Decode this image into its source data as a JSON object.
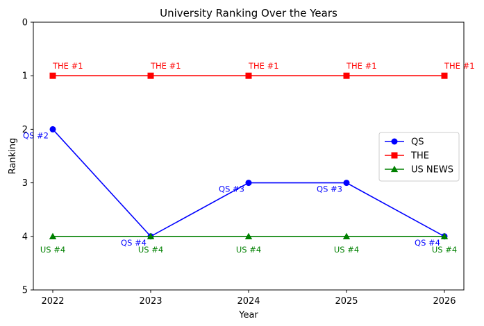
{
  "chart_data": {
    "type": "line",
    "title": "University Ranking Over the Years",
    "xlabel": "Year",
    "ylabel": "Ranking",
    "x": [
      2022,
      2023,
      2024,
      2025,
      2026
    ],
    "x_ticks": [
      "2022",
      "2023",
      "2024",
      "2025",
      "2026"
    ],
    "ylim": [
      0,
      5
    ],
    "y_inverted": true,
    "y_ticks": [
      0,
      1,
      2,
      3,
      4,
      5
    ],
    "grid": false,
    "legend_position": "right",
    "series": [
      {
        "name": "QS",
        "values": [
          2,
          4,
          3,
          3,
          4
        ],
        "color": "#0000ff",
        "marker": "circle",
        "labels": [
          "QS #2",
          "QS #4",
          "QS #3",
          "QS #3",
          "QS #4"
        ]
      },
      {
        "name": "THE",
        "values": [
          1,
          1,
          1,
          1,
          1
        ],
        "color": "#ff0000",
        "marker": "square",
        "labels": [
          "THE #1",
          "THE #1",
          "THE #1",
          "THE #1",
          "THE #1"
        ]
      },
      {
        "name": "US NEWS",
        "values": [
          4,
          4,
          4,
          4,
          4
        ],
        "color": "#008000",
        "marker": "triangle",
        "labels": [
          "US #4",
          "US #4",
          "US #4",
          "US #4",
          "US #4"
        ]
      }
    ]
  }
}
